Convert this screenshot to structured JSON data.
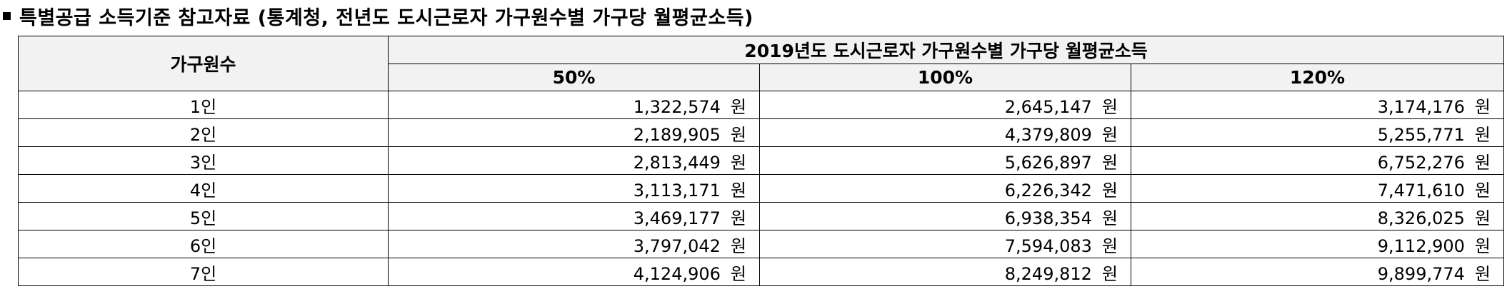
{
  "title": "특별공급 소득기준 참고자료 (통계청, 전년도 도시근로자 가구원수별 가구당 월평균소득)",
  "table": {
    "col_household": "가구원수",
    "group_header": "2019년도 도시근로자 가구원수별 가구당 월평균소득",
    "pct_headers": [
      "50%",
      "100%",
      "120%"
    ],
    "unit": "원",
    "rows": [
      {
        "size": "1인",
        "values": [
          "1,322,574",
          "2,645,147",
          "3,174,176"
        ]
      },
      {
        "size": "2인",
        "values": [
          "2,189,905",
          "4,379,809",
          "5,255,771"
        ]
      },
      {
        "size": "3인",
        "values": [
          "2,813,449",
          "5,626,897",
          "6,752,276"
        ]
      },
      {
        "size": "4인",
        "values": [
          "3,113,171",
          "6,226,342",
          "7,471,610"
        ]
      },
      {
        "size": "5인",
        "values": [
          "3,469,177",
          "6,938,354",
          "8,326,025"
        ]
      },
      {
        "size": "6인",
        "values": [
          "3,797,042",
          "7,594,083",
          "9,112,900"
        ]
      },
      {
        "size": "7인",
        "values": [
          "4,124,906",
          "8,249,812",
          "9,899,774"
        ]
      }
    ]
  }
}
